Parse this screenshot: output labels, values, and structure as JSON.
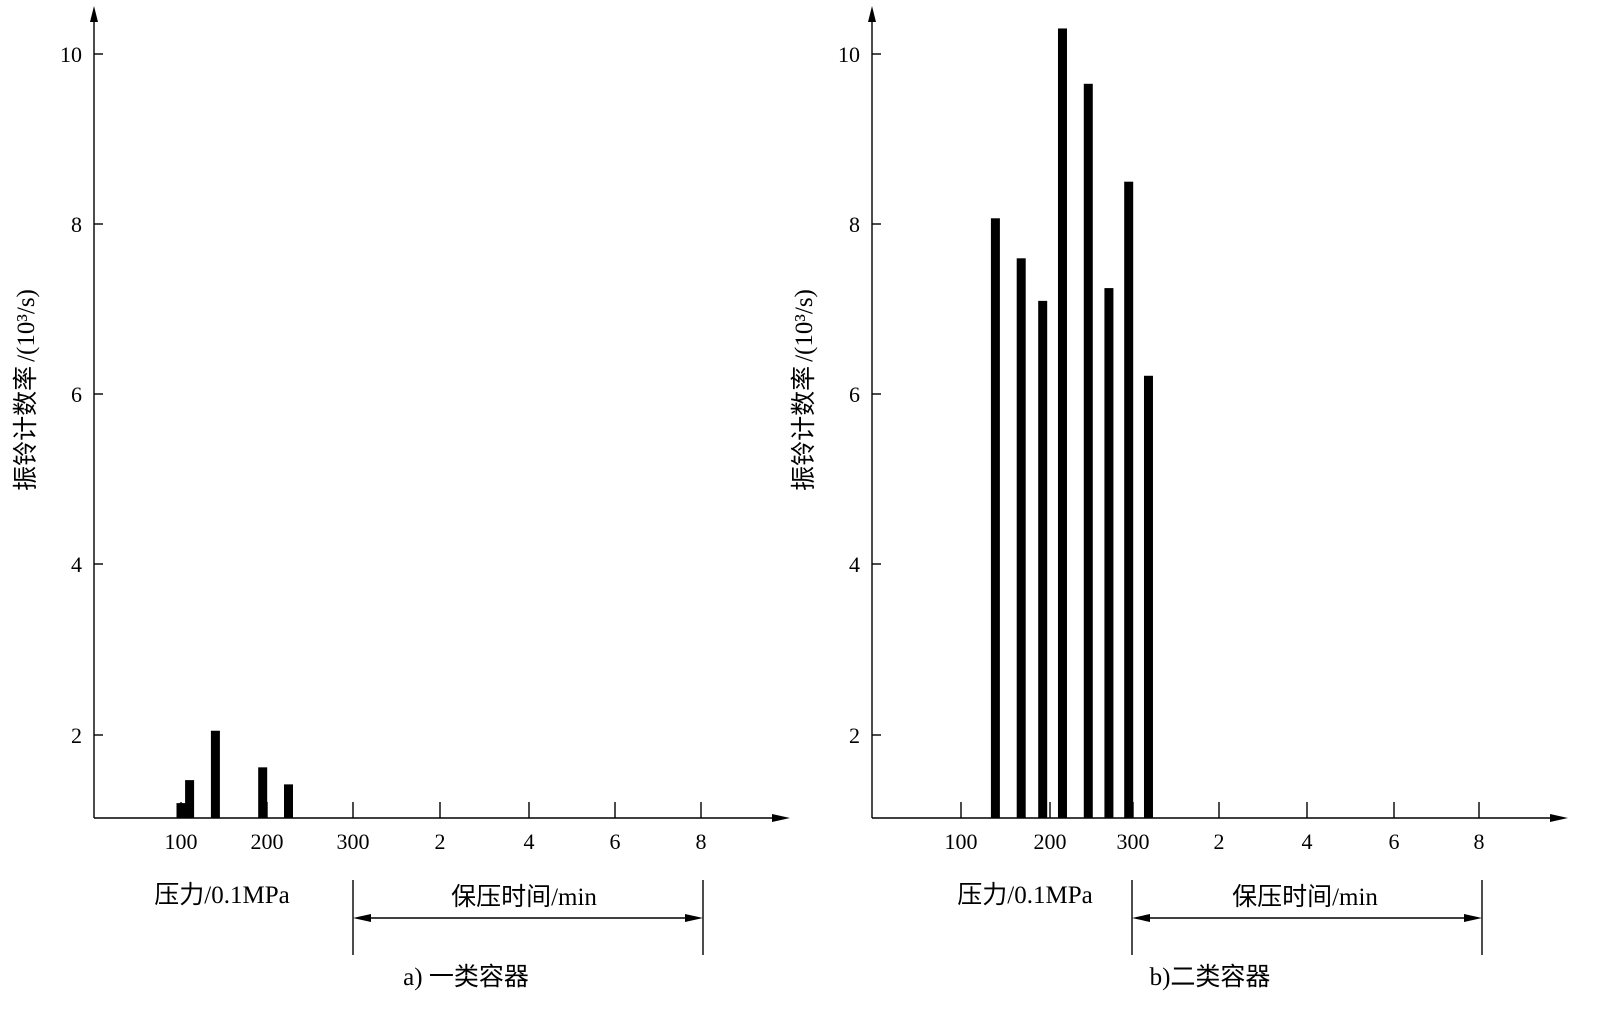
{
  "chart_data": [
    {
      "type": "bar",
      "caption": "a) 一类容器",
      "ylabel_text": "振铃计数率",
      "ylabel_unit": "/(10³/s)",
      "yticks": [
        "2",
        "4",
        "6",
        "8",
        "10"
      ],
      "ylim": [
        1,
        10.7
      ],
      "xticks": [
        "100",
        "200",
        "300",
        "2",
        "4",
        "6",
        "8"
      ],
      "xlabel_pressure": "压力/0.1MPa",
      "xlabel_time": "保压时间/min",
      "pressure_xlim": [
        0,
        300
      ],
      "bars": [
        {
          "pressure": 100,
          "value": 1.2
        },
        {
          "pressure": 110,
          "value": 1.47
        },
        {
          "pressure": 140,
          "value": 2.05
        },
        {
          "pressure": 195,
          "value": 1.62
        },
        {
          "pressure": 225,
          "value": 1.42
        }
      ]
    },
    {
      "type": "bar",
      "caption": "b)二类容器",
      "ylabel_text": "振铃计数率",
      "ylabel_unit": "/(10³/s)",
      "yticks": [
        "2",
        "4",
        "6",
        "8",
        "10"
      ],
      "ylim": [
        1,
        10.7
      ],
      "xticks": [
        "100",
        "200",
        "300",
        "2",
        "4",
        "6",
        "8"
      ],
      "xlabel_pressure": "压力/0.1MPa",
      "xlabel_time": "保压时间/min",
      "pressure_xlim": [
        0,
        300
      ],
      "bars": [
        {
          "pressure": 140,
          "value": 8.07
        },
        {
          "pressure": 170,
          "value": 7.6
        },
        {
          "pressure": 195,
          "value": 7.1
        },
        {
          "pressure": 218,
          "value": 10.3
        },
        {
          "pressure": 248,
          "value": 9.65
        },
        {
          "pressure": 272,
          "value": 7.25
        },
        {
          "pressure": 295,
          "value": 8.5
        },
        {
          "pressure": 318,
          "value": 6.22
        }
      ]
    }
  ]
}
